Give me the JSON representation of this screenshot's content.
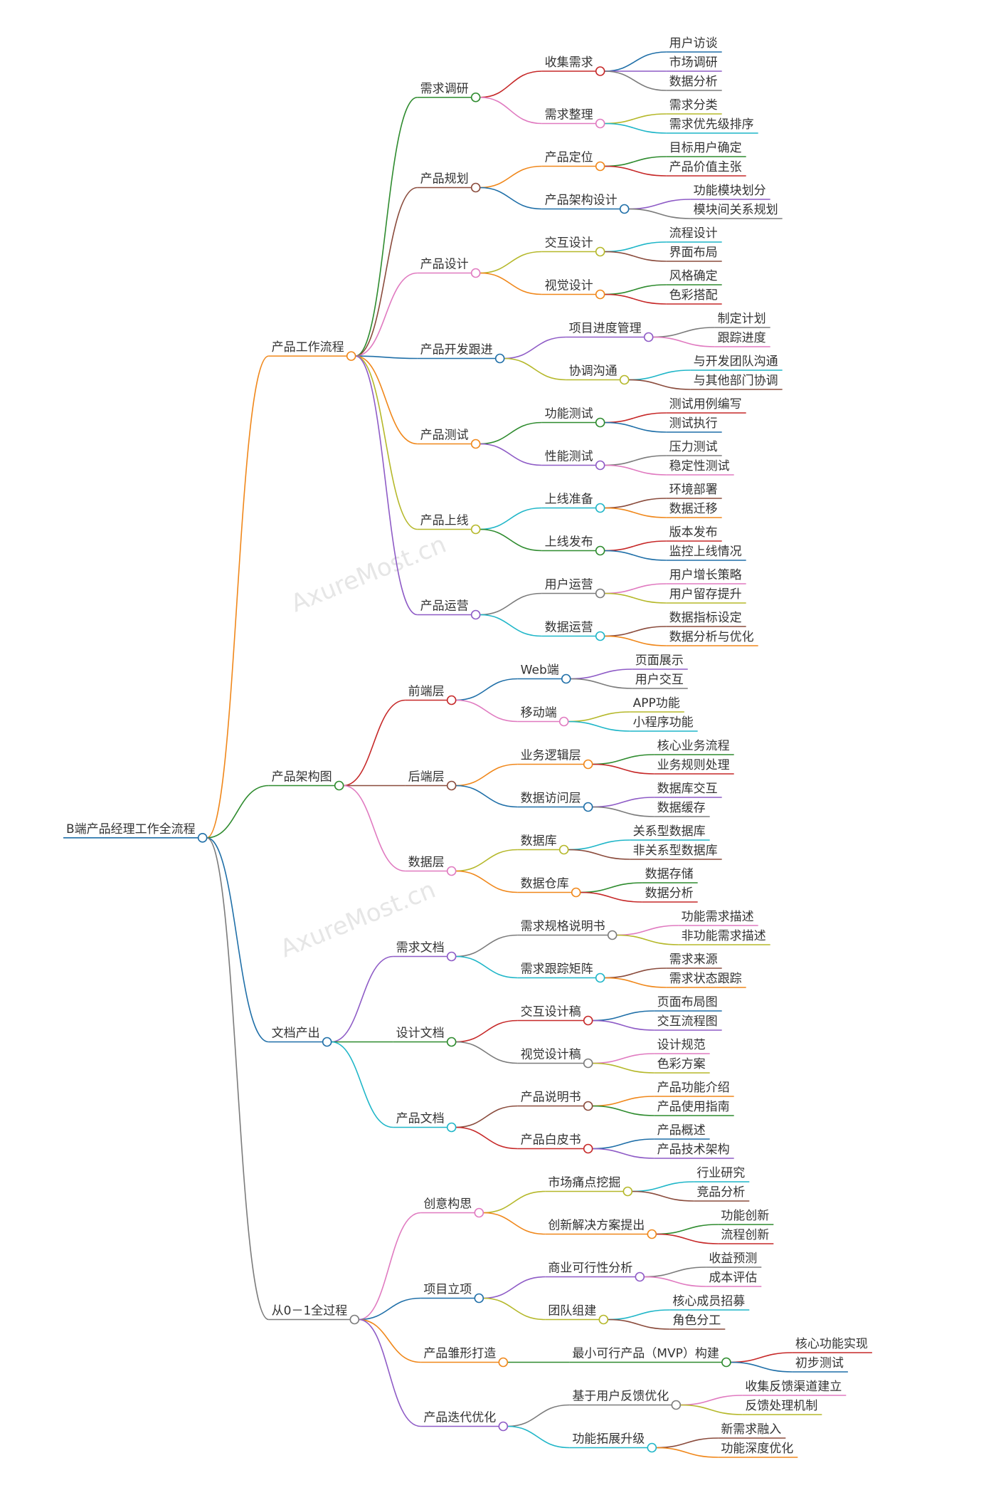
{
  "root": {
    "label": "B端产品经理工作全流程",
    "children": [
      {
        "label": "产品工作流程",
        "children": [
          {
            "label": "需求调研",
            "children": [
              {
                "label": "收集需求",
                "children": [
                  {
                    "label": "用户访谈"
                  },
                  {
                    "label": "市场调研"
                  },
                  {
                    "label": "数据分析"
                  }
                ]
              },
              {
                "label": "需求整理",
                "children": [
                  {
                    "label": "需求分类"
                  },
                  {
                    "label": "需求优先级排序"
                  }
                ]
              }
            ]
          },
          {
            "label": "产品规划",
            "children": [
              {
                "label": "产品定位",
                "children": [
                  {
                    "label": "目标用户确定"
                  },
                  {
                    "label": "产品价值主张"
                  }
                ]
              },
              {
                "label": "产品架构设计",
                "children": [
                  {
                    "label": "功能模块划分"
                  },
                  {
                    "label": "模块间关系规划"
                  }
                ]
              }
            ]
          },
          {
            "label": "产品设计",
            "children": [
              {
                "label": "交互设计",
                "children": [
                  {
                    "label": "流程设计"
                  },
                  {
                    "label": "界面布局"
                  }
                ]
              },
              {
                "label": "视觉设计",
                "children": [
                  {
                    "label": "风格确定"
                  },
                  {
                    "label": "色彩搭配"
                  }
                ]
              }
            ]
          },
          {
            "label": "产品开发跟进",
            "children": [
              {
                "label": "项目进度管理",
                "children": [
                  {
                    "label": "制定计划"
                  },
                  {
                    "label": "跟踪进度"
                  }
                ]
              },
              {
                "label": "协调沟通",
                "children": [
                  {
                    "label": "与开发团队沟通"
                  },
                  {
                    "label": "与其他部门协调"
                  }
                ]
              }
            ]
          },
          {
            "label": "产品测试",
            "children": [
              {
                "label": "功能测试",
                "children": [
                  {
                    "label": "测试用例编写"
                  },
                  {
                    "label": "测试执行"
                  }
                ]
              },
              {
                "label": "性能测试",
                "children": [
                  {
                    "label": "压力测试"
                  },
                  {
                    "label": "稳定性测试"
                  }
                ]
              }
            ]
          },
          {
            "label": "产品上线",
            "children": [
              {
                "label": "上线准备",
                "children": [
                  {
                    "label": "环境部署"
                  },
                  {
                    "label": "数据迁移"
                  }
                ]
              },
              {
                "label": "上线发布",
                "children": [
                  {
                    "label": "版本发布"
                  },
                  {
                    "label": "监控上线情况"
                  }
                ]
              }
            ]
          },
          {
            "label": "产品运营",
            "children": [
              {
                "label": "用户运营",
                "children": [
                  {
                    "label": "用户增长策略"
                  },
                  {
                    "label": "用户留存提升"
                  }
                ]
              },
              {
                "label": "数据运营",
                "children": [
                  {
                    "label": "数据指标设定"
                  },
                  {
                    "label": "数据分析与优化"
                  }
                ]
              }
            ]
          }
        ]
      },
      {
        "label": "产品架构图",
        "children": [
          {
            "label": "前端层",
            "children": [
              {
                "label": "Web端",
                "children": [
                  {
                    "label": "页面展示"
                  },
                  {
                    "label": "用户交互"
                  }
                ]
              },
              {
                "label": "移动端",
                "children": [
                  {
                    "label": "APP功能"
                  },
                  {
                    "label": "小程序功能"
                  }
                ]
              }
            ]
          },
          {
            "label": "后端层",
            "children": [
              {
                "label": "业务逻辑层",
                "children": [
                  {
                    "label": "核心业务流程"
                  },
                  {
                    "label": "业务规则处理"
                  }
                ]
              },
              {
                "label": "数据访问层",
                "children": [
                  {
                    "label": "数据库交互"
                  },
                  {
                    "label": "数据缓存"
                  }
                ]
              }
            ]
          },
          {
            "label": "数据层",
            "children": [
              {
                "label": "数据库",
                "children": [
                  {
                    "label": "关系型数据库"
                  },
                  {
                    "label": "非关系型数据库"
                  }
                ]
              },
              {
                "label": "数据仓库",
                "children": [
                  {
                    "label": "数据存储"
                  },
                  {
                    "label": "数据分析"
                  }
                ]
              }
            ]
          }
        ]
      },
      {
        "label": "文档产出",
        "children": [
          {
            "label": "需求文档",
            "children": [
              {
                "label": "需求规格说明书",
                "children": [
                  {
                    "label": "功能需求描述"
                  },
                  {
                    "label": "非功能需求描述"
                  }
                ]
              },
              {
                "label": "需求跟踪矩阵",
                "children": [
                  {
                    "label": "需求来源"
                  },
                  {
                    "label": "需求状态跟踪"
                  }
                ]
              }
            ]
          },
          {
            "label": "设计文档",
            "children": [
              {
                "label": "交互设计稿",
                "children": [
                  {
                    "label": "页面布局图"
                  },
                  {
                    "label": "交互流程图"
                  }
                ]
              },
              {
                "label": "视觉设计稿",
                "children": [
                  {
                    "label": "设计规范"
                  },
                  {
                    "label": "色彩方案"
                  }
                ]
              }
            ]
          },
          {
            "label": "产品文档",
            "children": [
              {
                "label": "产品说明书",
                "children": [
                  {
                    "label": "产品功能介绍"
                  },
                  {
                    "label": "产品使用指南"
                  }
                ]
              },
              {
                "label": "产品白皮书",
                "children": [
                  {
                    "label": "产品概述"
                  },
                  {
                    "label": "产品技术架构"
                  }
                ]
              }
            ]
          }
        ]
      },
      {
        "label": "从0－1全过程",
        "children": [
          {
            "label": "创意构思",
            "children": [
              {
                "label": "市场痛点挖掘",
                "children": [
                  {
                    "label": "行业研究"
                  },
                  {
                    "label": "竞品分析"
                  }
                ]
              },
              {
                "label": "创新解决方案提出",
                "children": [
                  {
                    "label": "功能创新"
                  },
                  {
                    "label": "流程创新"
                  }
                ]
              }
            ]
          },
          {
            "label": "项目立项",
            "children": [
              {
                "label": "商业可行性分析",
                "children": [
                  {
                    "label": "收益预测"
                  },
                  {
                    "label": "成本评估"
                  }
                ]
              },
              {
                "label": "团队组建",
                "children": [
                  {
                    "label": "核心成员招募"
                  },
                  {
                    "label": "角色分工"
                  }
                ]
              }
            ]
          },
          {
            "label": "产品雏形打造",
            "children": [
              {
                "label": "最小可行产品（MVP）构建",
                "children": [
                  {
                    "label": "核心功能实现"
                  },
                  {
                    "label": "初步测试"
                  }
                ]
              }
            ]
          },
          {
            "label": "产品迭代优化",
            "children": [
              {
                "label": "基于用户反馈优化",
                "children": [
                  {
                    "label": "收集反馈渠道建立"
                  },
                  {
                    "label": "反馈处理机制"
                  }
                ]
              },
              {
                "label": "功能拓展升级",
                "children": [
                  {
                    "label": "新需求融入"
                  },
                  {
                    "label": "功能深度优化"
                  }
                ]
              }
            ]
          }
        ]
      }
    ]
  },
  "watermarks": [
    "AxureMost.cn",
    "AxureMost.cn"
  ]
}
